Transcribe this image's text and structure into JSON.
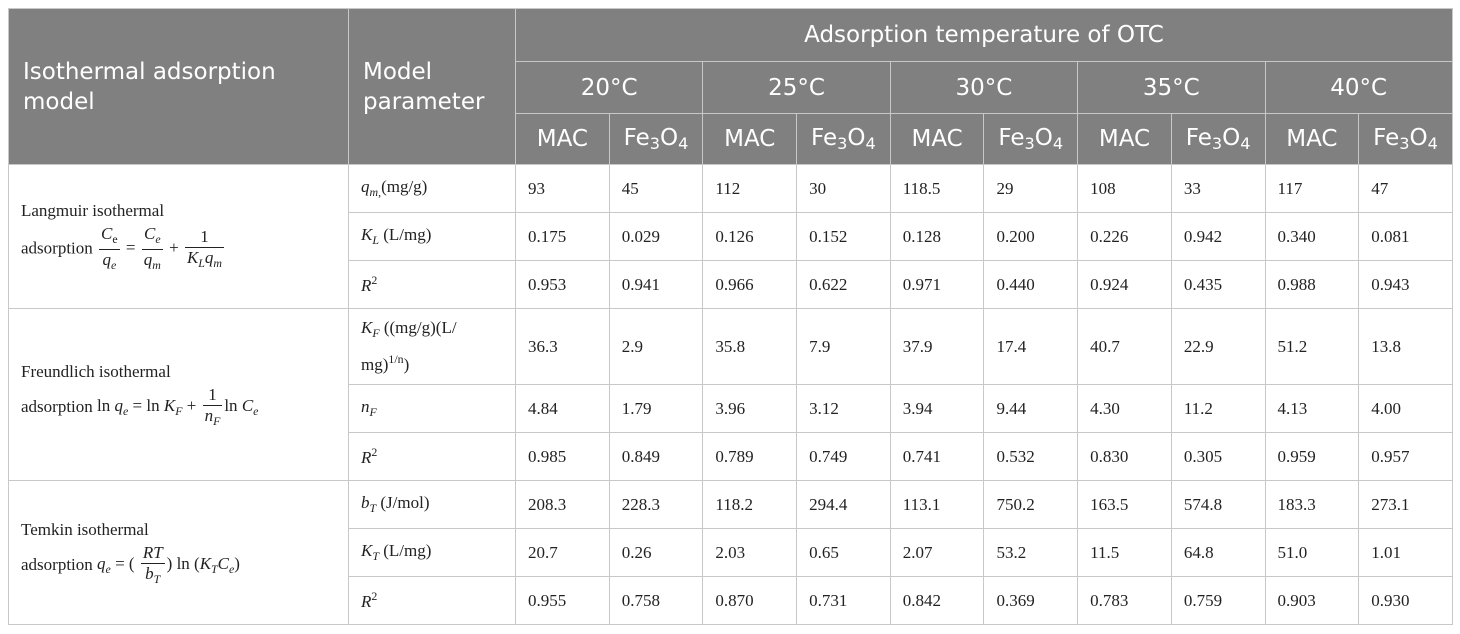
{
  "header": {
    "model_col": "Isothermal adsorption model",
    "param_col": "Model parameter",
    "temperature_group": "Adsorption temperature of OTC",
    "temperatures": [
      "20°C",
      "25°C",
      "30°C",
      "35°C",
      "40°C"
    ],
    "materials": [
      "MAC",
      "Fe3O4"
    ],
    "fe_prefix": "Fe",
    "fe_sub1": "3",
    "fe_mid": "O",
    "fe_sub2": "4"
  },
  "models": [
    {
      "name": "Langmuir isothermal",
      "eq_prefix": "adsorption",
      "params": [
        {
          "label": "q",
          "sub": "m,",
          "unit": "(mg/g)",
          "values": [
            "93",
            "45",
            "112",
            "30",
            "118.5",
            "29",
            "108",
            "33",
            "117",
            "47"
          ]
        },
        {
          "label": "K",
          "sub": "L",
          "unit": " (L/mg)",
          "values": [
            "0.175",
            "0.029",
            "0.126",
            "0.152",
            "0.128",
            "0.200",
            "0.226",
            "0.942",
            "0.340",
            "0.081"
          ]
        },
        {
          "label": "R",
          "sup": "2",
          "values": [
            "0.953",
            "0.941",
            "0.966",
            "0.622",
            "0.971",
            "0.440",
            "0.924",
            "0.435",
            "0.988",
            "0.943"
          ]
        }
      ]
    },
    {
      "name": "Freundlich isothermal",
      "eq_prefix": "adsorption",
      "params": [
        {
          "label": "K",
          "sub": "F",
          "unit": " ((mg/g)(L/",
          "unit2": "mg)",
          "unit_sup": "1/n",
          "unit3": ")",
          "values": [
            "36.3",
            "2.9",
            "35.8",
            "7.9",
            "37.9",
            "17.4",
            "40.7",
            "22.9",
            "51.2",
            "13.8"
          ]
        },
        {
          "label": "n",
          "sub": "F",
          "values": [
            "4.84",
            "1.79",
            "3.96",
            "3.12",
            "3.94",
            "9.44",
            "4.30",
            "11.2",
            "4.13",
            "4.00"
          ]
        },
        {
          "label": "R",
          "sup": "2",
          "values": [
            "0.985",
            "0.849",
            "0.789",
            "0.749",
            "0.741",
            "0.532",
            "0.830",
            "0.305",
            "0.959",
            "0.957"
          ]
        }
      ]
    },
    {
      "name": "Temkin isothermal",
      "eq_prefix": "adsorption",
      "params": [
        {
          "label": "b",
          "sub": "T",
          "unit": " (J/mol)",
          "values": [
            "208.3",
            "228.3",
            "118.2",
            "294.4",
            "113.1",
            "750.2",
            "163.5",
            "574.8",
            "183.3",
            "273.1"
          ]
        },
        {
          "label": "K",
          "sub": "T",
          "unit": " (L/mg)",
          "values": [
            "20.7",
            "0.26",
            "2.03",
            "0.65",
            "2.07",
            "53.2",
            "11.5",
            "64.8",
            "51.0",
            "1.01"
          ]
        },
        {
          "label": "R",
          "sup": "2",
          "values": [
            "0.955",
            "0.758",
            "0.870",
            "0.731",
            "0.842",
            "0.369",
            "0.783",
            "0.759",
            "0.903",
            "0.930"
          ]
        }
      ]
    }
  ]
}
